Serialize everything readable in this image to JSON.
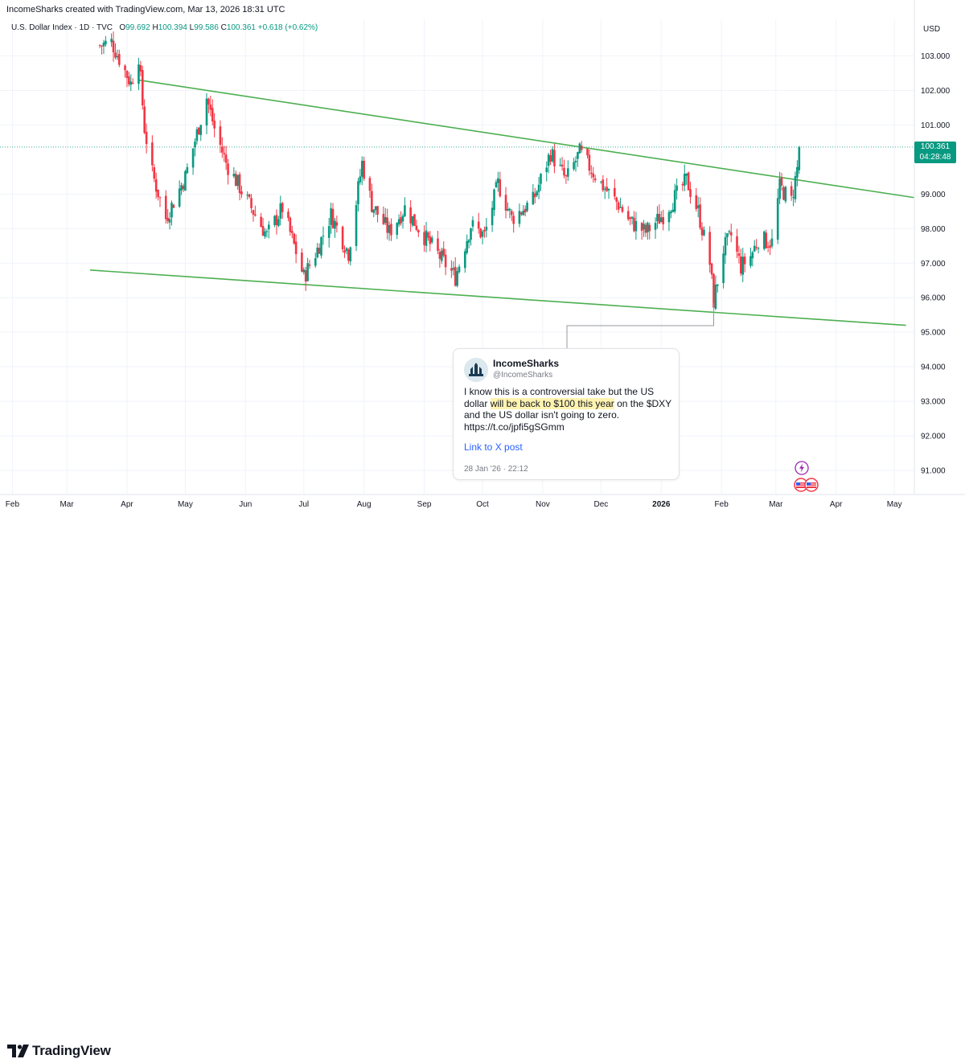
{
  "header": {
    "credit": "IncomeSharks created with TradingView.com, Mar 13, 2026 18:31 UTC"
  },
  "legend": {
    "symbol": "U.S. Dollar Index · 1D · TVC",
    "open_label": "O",
    "open": "99.692",
    "high_label": "H",
    "high": "100.394",
    "low_label": "L",
    "low": "99.586",
    "close_label": "C",
    "close": "100.361",
    "change": "+0.618 (+0.62%)"
  },
  "axis": {
    "currency": "USD"
  },
  "price_tag": {
    "price": "100.361",
    "countdown": "04:28:48",
    "color": "#089981"
  },
  "tweet": {
    "name": "IncomeSharks",
    "handle": "@IncomeSharks",
    "text_before": "I know this is a controversial take but the US dollar ",
    "text_highlight": "will be back to $100 this year",
    "text_after": " on the $DXY and the US dollar isn't going to zero. https://t.co/jpfi5gSGmm",
    "link_label": "Link to X post",
    "date": "28 Jan '26 · 22:12"
  },
  "footer": {
    "brand": "TradingView"
  },
  "colors": {
    "up": "#089981",
    "down": "#f23645",
    "trendline": "#4caf50",
    "grid": "#f0f3fa"
  },
  "chart_data": {
    "type": "candlestick",
    "x_labels": [
      "Feb",
      "Mar",
      "Apr",
      "May",
      "Jun",
      "Jul",
      "Aug",
      "Sep",
      "Oct",
      "Nov",
      "Dec",
      "2026",
      "Feb",
      "Mar",
      "Apr",
      "May"
    ],
    "y_ticks": [
      "103.000",
      "102.000",
      "101.000",
      "99.000",
      "98.000",
      "97.000",
      "96.000",
      "95.000",
      "94.000",
      "93.000",
      "92.000",
      "91.000"
    ],
    "ylim": [
      90.4,
      103.9
    ],
    "last_price": 100.361,
    "anchors": [
      {
        "date": "2025-03-18",
        "close": 103.3
      },
      {
        "date": "2025-03-24",
        "close": 103.4
      },
      {
        "date": "2025-04-03",
        "close": 102.2
      },
      {
        "date": "2025-04-07",
        "close": 103.0
      },
      {
        "date": "2025-04-10",
        "close": 100.9
      },
      {
        "date": "2025-04-14",
        "close": 99.6
      },
      {
        "date": "2025-04-21",
        "close": 98.3
      },
      {
        "date": "2025-05-01",
        "close": 99.5
      },
      {
        "date": "2025-05-12",
        "close": 101.8
      },
      {
        "date": "2025-05-16",
        "close": 100.9
      },
      {
        "date": "2025-05-22",
        "close": 99.9
      },
      {
        "date": "2025-06-02",
        "close": 98.8
      },
      {
        "date": "2025-06-12",
        "close": 97.8
      },
      {
        "date": "2025-06-20",
        "close": 98.6
      },
      {
        "date": "2025-07-01",
        "close": 96.6
      },
      {
        "date": "2025-07-08",
        "close": 97.4
      },
      {
        "date": "2025-07-15",
        "close": 98.4
      },
      {
        "date": "2025-07-24",
        "close": 97.3
      },
      {
        "date": "2025-07-31",
        "close": 99.9
      },
      {
        "date": "2025-08-05",
        "close": 98.7
      },
      {
        "date": "2025-08-14",
        "close": 97.9
      },
      {
        "date": "2025-08-22",
        "close": 98.6
      },
      {
        "date": "2025-09-02",
        "close": 97.7
      },
      {
        "date": "2025-09-17",
        "close": 96.6
      },
      {
        "date": "2025-09-25",
        "close": 98.1
      },
      {
        "date": "2025-10-02",
        "close": 97.8
      },
      {
        "date": "2025-10-09",
        "close": 99.3
      },
      {
        "date": "2025-10-16",
        "close": 98.3
      },
      {
        "date": "2025-10-27",
        "close": 98.8
      },
      {
        "date": "2025-11-05",
        "close": 100.2
      },
      {
        "date": "2025-11-13",
        "close": 99.4
      },
      {
        "date": "2025-11-20",
        "close": 100.2
      },
      {
        "date": "2025-12-01",
        "close": 99.3
      },
      {
        "date": "2025-12-10",
        "close": 98.7
      },
      {
        "date": "2025-12-16",
        "close": 98.2
      },
      {
        "date": "2025-12-24",
        "close": 97.9
      },
      {
        "date": "2026-01-02",
        "close": 98.4
      },
      {
        "date": "2026-01-14",
        "close": 99.4
      },
      {
        "date": "2026-01-20",
        "close": 98.5
      },
      {
        "date": "2026-01-26",
        "close": 97.0
      },
      {
        "date": "2026-01-28",
        "close": 95.9
      },
      {
        "date": "2026-02-02",
        "close": 97.4
      },
      {
        "date": "2026-02-06",
        "close": 97.8
      },
      {
        "date": "2026-02-11",
        "close": 96.9
      },
      {
        "date": "2026-02-16",
        "close": 97.2
      },
      {
        "date": "2026-02-20",
        "close": 97.7
      },
      {
        "date": "2026-02-27",
        "close": 97.6
      },
      {
        "date": "2026-03-03",
        "close": 99.2
      },
      {
        "date": "2026-03-09",
        "close": 98.8
      },
      {
        "date": "2026-03-12",
        "close": 99.74
      },
      {
        "date": "2026-03-13",
        "close": 100.361
      }
    ],
    "trendlines": [
      {
        "from": {
          "date": "2025-04-07",
          "price": 102.3
        },
        "to": {
          "date": "2026-05-11",
          "price": 98.9
        }
      },
      {
        "from": {
          "date": "2025-03-13",
          "price": 96.8
        },
        "to": {
          "date": "2026-05-07",
          "price": 95.2
        }
      }
    ],
    "annotation_connector": {
      "date": "2026-01-28",
      "price": 95.85
    }
  }
}
